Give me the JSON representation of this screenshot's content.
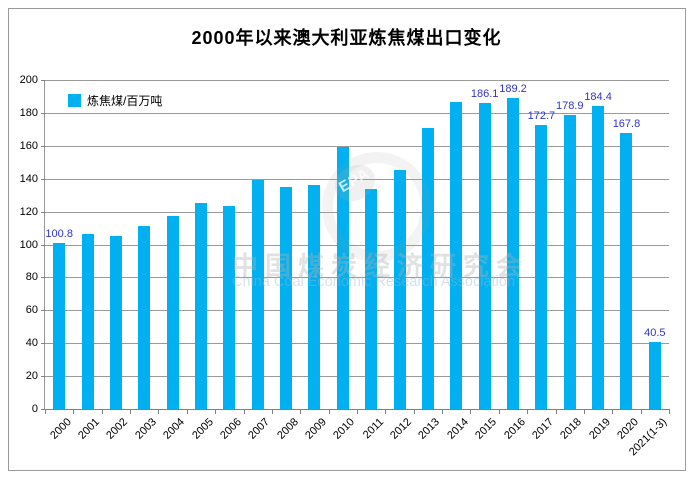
{
  "title": "2000年以来澳大利亚炼焦煤出口变化",
  "legend": {
    "label": "炼焦煤/百万吨",
    "swatch_color": "#00B0F0"
  },
  "watermark": {
    "badge_text": "EPA",
    "line1": "中国煤炭经济研究会",
    "line2": "China Coal Economic Research Association"
  },
  "colors": {
    "bar": "#00B0F0",
    "data_label": "#3333CC",
    "gridline": "#9a9a9a",
    "axis": "#808080"
  },
  "chart_data": {
    "type": "bar",
    "title": "2000年以来澳大利亚炼焦煤出口变化",
    "series_name": "炼焦煤/百万吨",
    "categories": [
      "2000",
      "2001",
      "2002",
      "2003",
      "2004",
      "2005",
      "2006",
      "2007",
      "2008",
      "2009",
      "2010",
      "2011",
      "2012",
      "2013",
      "2014",
      "2015",
      "2016",
      "2017",
      "2018",
      "2019",
      "2020",
      "2021(1-3)"
    ],
    "values": [
      100.8,
      106.5,
      105,
      111.5,
      117.5,
      125.5,
      123.5,
      139,
      135,
      136,
      159,
      133.5,
      145,
      171,
      186.5,
      186.1,
      189.2,
      172.7,
      178.9,
      184.4,
      167.8,
      40.5
    ],
    "data_labels": {
      "0": "100.8",
      "15": "186.1",
      "16": "189.2",
      "17": "172.7",
      "18": "178.9",
      "19": "184.4",
      "20": "167.8",
      "21": "40.5"
    },
    "ylim": [
      0,
      200
    ],
    "ytick_step": 20,
    "ytick_labels": [
      "0",
      "20",
      "40",
      "60",
      "80",
      "100",
      "120",
      "140",
      "160",
      "180",
      "200"
    ],
    "grid": true,
    "legend_position": "top-left-inside"
  }
}
